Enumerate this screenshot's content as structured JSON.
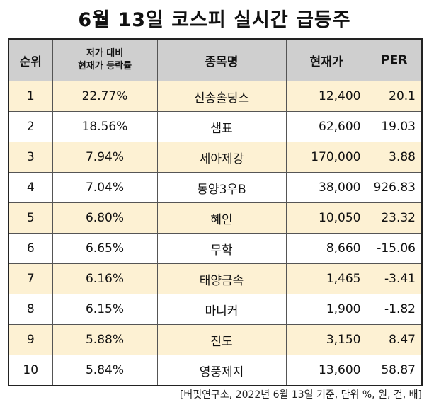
{
  "title": "6월 13일 코스피 실시간 급등주",
  "headers": {
    "rank": "순위",
    "change_line1": "저가 대비",
    "change_line2": "현재가 등락률",
    "name": "종목명",
    "price": "현재가",
    "per": "PER"
  },
  "rows": [
    {
      "rank": "1",
      "change": "22.77%",
      "name": "신송홀딩스",
      "price": "12,400",
      "per": "20.1"
    },
    {
      "rank": "2",
      "change": "18.56%",
      "name": "샘표",
      "price": "62,600",
      "per": "19.03"
    },
    {
      "rank": "3",
      "change": "7.94%",
      "name": "세아제강",
      "price": "170,000",
      "per": "3.88"
    },
    {
      "rank": "4",
      "change": "7.04%",
      "name": "동양3우B",
      "price": "38,000",
      "per": "926.83"
    },
    {
      "rank": "5",
      "change": "6.80%",
      "name": "혜인",
      "price": "10,050",
      "per": "23.32"
    },
    {
      "rank": "6",
      "change": "6.65%",
      "name": "무학",
      "price": "8,660",
      "per": "-15.06"
    },
    {
      "rank": "7",
      "change": "6.16%",
      "name": "태양금속",
      "price": "1,465",
      "per": "-3.41"
    },
    {
      "rank": "8",
      "change": "6.15%",
      "name": "마니커",
      "price": "1,900",
      "per": "-1.82"
    },
    {
      "rank": "9",
      "change": "5.88%",
      "name": "진도",
      "price": "3,150",
      "per": "8.47"
    },
    {
      "rank": "10",
      "change": "5.84%",
      "name": "영풍제지",
      "price": "13,600",
      "per": "58.87"
    }
  ],
  "footnote": "[버핏연구소, 2022년 6월 13일 기준, 단위 %, 원, 건, 배]",
  "colors": {
    "header_bg": "#cfcfcf",
    "odd_row_bg": "#fdf1d3",
    "even_row_bg": "#ffffff"
  }
}
